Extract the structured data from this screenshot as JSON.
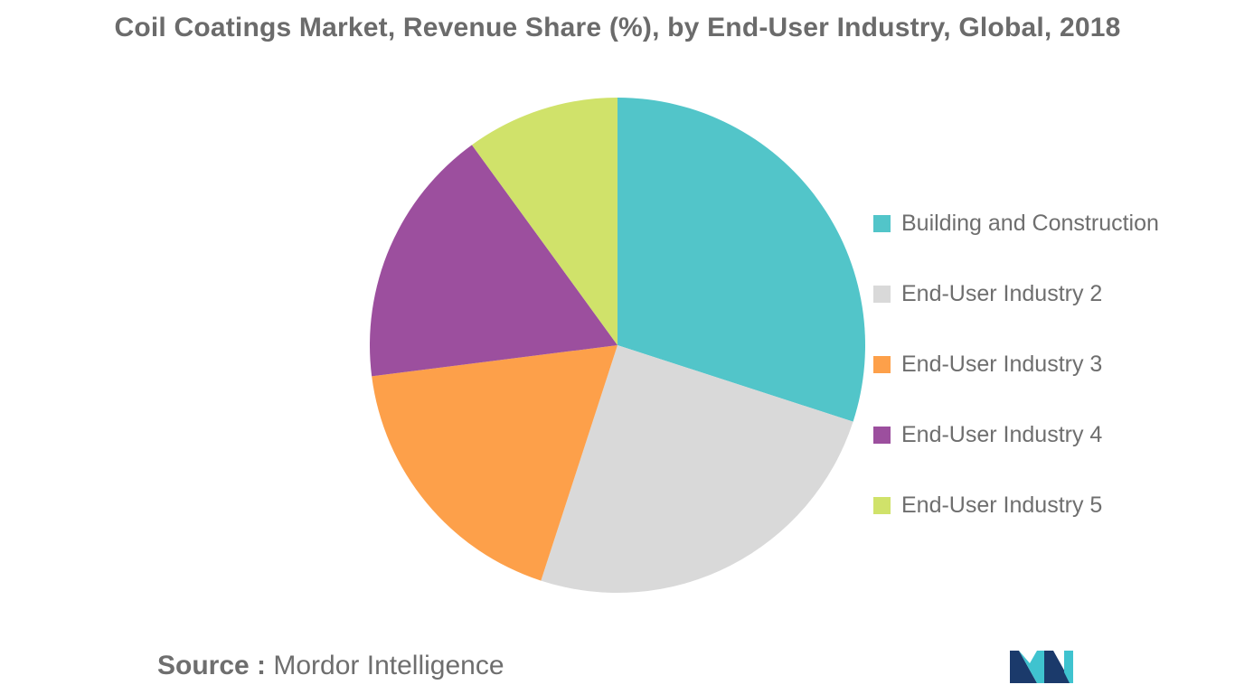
{
  "chart_data": {
    "type": "pie",
    "title": "Coil Coatings Market, Revenue Share (%), by End-User Industry, Global, 2018",
    "legend_position": "right",
    "series": [
      {
        "name": "Building and Construction",
        "value": 30,
        "color": "#52c5c9"
      },
      {
        "name": "End-User Industry 2",
        "value": 25,
        "color": "#d9d9d9"
      },
      {
        "name": "End-User Industry 3",
        "value": 18,
        "color": "#fda04a"
      },
      {
        "name": "End-User Industry 4",
        "value": 17,
        "color": "#9c4f9e"
      },
      {
        "name": "End-User Industry 5",
        "value": 10,
        "color": "#d0e26a"
      }
    ]
  },
  "footer": {
    "source_prefix": "Source :",
    "source_name": "Mordor Intelligence"
  },
  "logo": {
    "icon": "mordor-intelligence-logo",
    "colors": [
      "#1b3a6b",
      "#3fc3cf"
    ]
  }
}
